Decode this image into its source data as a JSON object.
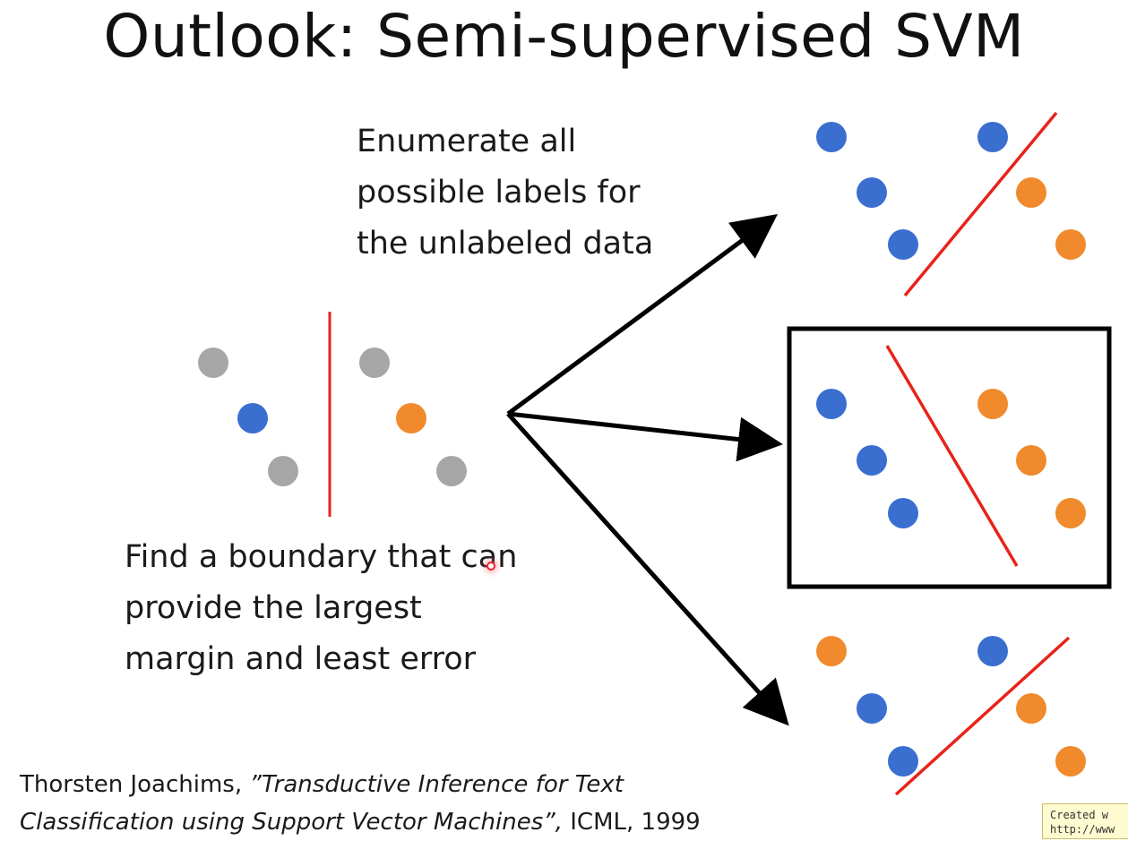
{
  "title": "Outlook: Semi-supervised SVM",
  "enumerate_text": {
    "line1": "Enumerate all",
    "line2": "possible labels for",
    "line3": "the unlabeled data"
  },
  "find_text": {
    "line1": "Find a boundary that can",
    "line2": "provide the largest",
    "line3": "margin and least error"
  },
  "citation": {
    "author": "Thorsten Joachims, ",
    "title_line1": "”Transductive Inference for Text",
    "title_line2": "Classification using Support Vector Machines”,",
    "venue": " ICML, 1999"
  },
  "tooltip": {
    "line1": "Created w",
    "line2": "http://www"
  },
  "colors": {
    "class_a": "#3a6fd0",
    "class_b": "#f08a2c",
    "unlabeled": "#a6a6a6",
    "boundary": "#e8231a",
    "arrow": "#000000"
  },
  "panels": {
    "left": {
      "points": [
        "unlabeled",
        "unlabeled",
        "class_a",
        "class_b",
        "unlabeled",
        "unlabeled"
      ]
    },
    "top_right": {
      "points": [
        "class_a",
        "class_a",
        "class_a",
        "class_b",
        "class_a",
        "class_b"
      ]
    },
    "middle_right": {
      "selected": true,
      "points": [
        "class_a",
        "class_b",
        "class_a",
        "class_b",
        "class_a",
        "class_b"
      ]
    },
    "bottom_right": {
      "points": [
        "class_b",
        "class_a",
        "class_a",
        "class_b",
        "class_a",
        "class_b"
      ]
    }
  }
}
